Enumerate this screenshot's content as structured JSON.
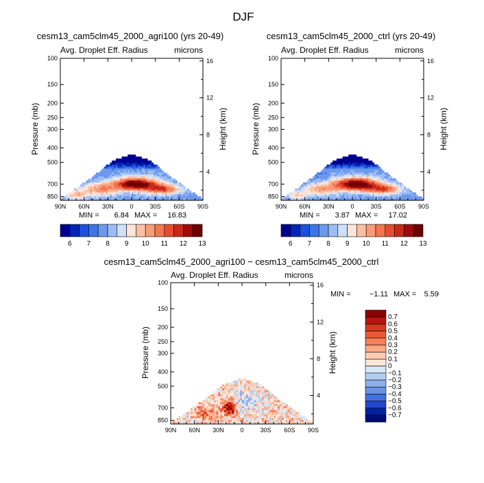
{
  "page": {
    "title": "DJF"
  },
  "panels": [
    {
      "id": "agri100",
      "title": "cesm13_cam5clm45_2000_agri100 (yrs 20-49)",
      "var_label": "Avg. Droplet Eff. Radius",
      "units": "microns",
      "ylabel": "Pressure (mb)",
      "y2label": "Height (km)",
      "min_label": "MIN =",
      "min_value": "6.84",
      "max_label": "MAX =",
      "max_value": "16.83"
    },
    {
      "id": "ctrl",
      "title": "cesm13_cam5clm45_2000_ctrl (yrs 20-49)",
      "var_label": "Avg. Droplet Eff. Radius",
      "units": "microns",
      "ylabel": "Pressure (mb)",
      "y2label": "Height (km)",
      "min_label": "MIN =",
      "min_value": "3.87",
      "max_label": "MAX =",
      "max_value": "17.02"
    },
    {
      "id": "diff",
      "title": "cesm13_cam5clm45_2000_agri100 − cesm13_cam5clm45_2000_ctrl",
      "var_label": "Avg. Droplet Eff. Radius",
      "units": "microns",
      "ylabel": "Pressure (mb)",
      "y2label": "Height (km)",
      "min_label": "MIN =",
      "min_value": "−1.11",
      "max_label": "MAX =",
      "max_value": "5.59"
    }
  ],
  "axes": {
    "xticks": [
      "90N",
      "60N",
      "30N",
      "0",
      "30S",
      "60S",
      "90S"
    ],
    "xtick_lat": [
      90,
      60,
      30,
      0,
      -30,
      -60,
      -90
    ],
    "pressure_ticks": [
      100,
      150,
      200,
      250,
      300,
      400,
      500,
      700,
      850
    ],
    "height_ticks": [
      16,
      12,
      8,
      4
    ]
  },
  "colorbars": {
    "abs_labels": [
      "6",
      "7",
      "8",
      "9",
      "10",
      "11",
      "12",
      "13"
    ],
    "abs_colors": [
      "#00008f",
      "#0025b8",
      "#1d4fd8",
      "#3d74e6",
      "#6b99ee",
      "#9dbcf3",
      "#cfe0f8",
      "#fde4d8",
      "#fbc0a4",
      "#f89c77",
      "#f47550",
      "#e64c30",
      "#c8281b",
      "#9f0c0c",
      "#6e0000"
    ],
    "diff_labels": [
      "0.7",
      "0.6",
      "0.5",
      "0.4",
      "0.3",
      "0.2",
      "0.1",
      "0",
      "−0.1",
      "−0.2",
      "−0.3",
      "−0.4",
      "−0.5",
      "−0.6",
      "−0.7"
    ],
    "diff_colors": [
      "#8c0000",
      "#b8150f",
      "#d83820",
      "#ea5a35",
      "#f5805a",
      "#f9a784",
      "#fccbb2",
      "#fde6d8",
      "#d6e7f7",
      "#b3cdf2",
      "#8cb0ec",
      "#6a92e6",
      "#456fde",
      "#2548c7",
      "#0023a0",
      "#000a78"
    ]
  },
  "chart_data": [
    {
      "type": "heatmap",
      "title": "cesm13_cam5clm45_2000_agri100 (yrs 20-49)",
      "subtitle": "Avg. Droplet Eff. Radius",
      "units": "microns",
      "xlabel": "",
      "ylabel": "Pressure (mb)",
      "y2label": "Height (km)",
      "x_range": [
        90,
        -90
      ],
      "y_range": [
        100,
        900
      ],
      "y_scale": "log",
      "field_range": [
        6.84,
        16.83
      ],
      "features": [
        {
          "lat": -5,
          "pressure": 700,
          "value": 14.5
        },
        {
          "lat": 40,
          "pressure": 750,
          "value": 11.0
        },
        {
          "lat": -40,
          "pressure": 760,
          "value": 12.5
        },
        {
          "lat": 20,
          "pressure": 520,
          "value": 8.0
        },
        {
          "lat": -60,
          "pressure": 800,
          "value": 9.5
        }
      ]
    },
    {
      "type": "heatmap",
      "title": "cesm13_cam5clm45_2000_ctrl (yrs 20-49)",
      "subtitle": "Avg. Droplet Eff. Radius",
      "units": "microns",
      "xlabel": "",
      "ylabel": "Pressure (mb)",
      "y2label": "Height (km)",
      "x_range": [
        90,
        -90
      ],
      "y_range": [
        100,
        900
      ],
      "y_scale": "log",
      "field_range": [
        3.87,
        17.02
      ],
      "features": [
        {
          "lat": -5,
          "pressure": 700,
          "value": 14.5
        },
        {
          "lat": 40,
          "pressure": 750,
          "value": 10.5
        },
        {
          "lat": -40,
          "pressure": 760,
          "value": 12.5
        },
        {
          "lat": 20,
          "pressure": 520,
          "value": 7.5
        },
        {
          "lat": -60,
          "pressure": 800,
          "value": 9.5
        }
      ]
    },
    {
      "type": "heatmap",
      "title": "cesm13_cam5clm45_2000_agri100 − cesm13_cam5clm45_2000_ctrl",
      "subtitle": "Avg. Droplet Eff. Radius",
      "units": "microns",
      "xlabel": "",
      "ylabel": "Pressure (mb)",
      "y2label": "Height (km)",
      "x_range": [
        90,
        -90
      ],
      "y_range": [
        100,
        900
      ],
      "y_scale": "log",
      "field_range": [
        -1.11,
        5.59
      ],
      "features": [
        {
          "lat": 15,
          "pressure": 700,
          "value": 0.6
        },
        {
          "lat": -5,
          "pressure": 600,
          "value": -0.2
        },
        {
          "lat": 45,
          "pressure": 750,
          "value": 0.3
        },
        {
          "lat": -40,
          "pressure": 700,
          "value": 0.1
        },
        {
          "lat": -70,
          "pressure": 780,
          "value": -0.1
        }
      ]
    }
  ]
}
